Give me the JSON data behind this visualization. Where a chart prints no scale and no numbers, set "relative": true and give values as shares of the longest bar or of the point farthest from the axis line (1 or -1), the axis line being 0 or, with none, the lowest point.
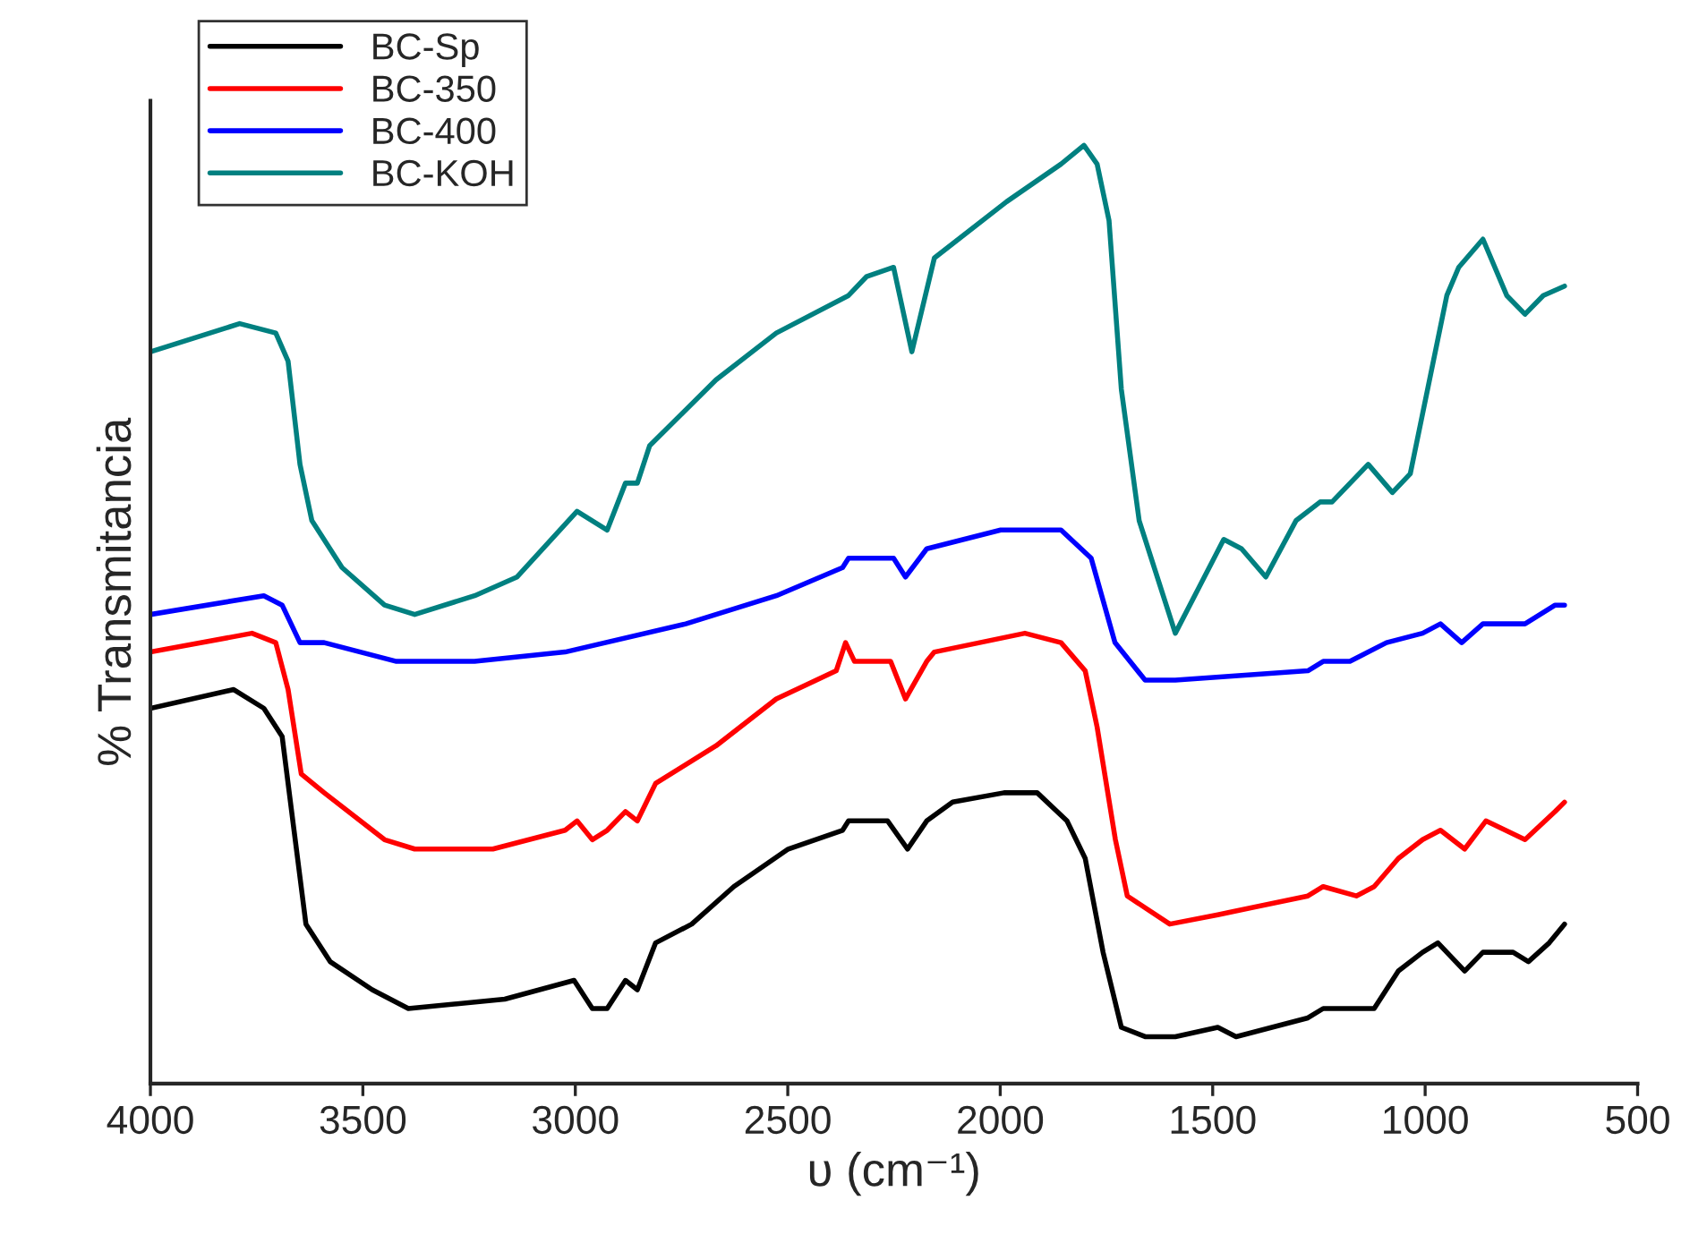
{
  "chart_data": {
    "type": "line",
    "xlabel": "υ (cm⁻¹)",
    "ylabel": "% Transmitancia",
    "relative": true,
    "xlim": [
      4000,
      500
    ],
    "xticks": [
      4000,
      3500,
      3000,
      2500,
      2000,
      1500,
      1000,
      500
    ],
    "tick_labels": "x",
    "legend": "top left",
    "grid": false,
    "line_style": "solid",
    "series": [
      {
        "name": "BC-Sp",
        "color": "#000000",
        "x": [
          4000,
          3804,
          3733,
          3690,
          3662,
          3634,
          3577,
          3478,
          3393,
          3166,
          3003,
          2960,
          2925,
          2882,
          2854,
          2811,
          2726,
          2627,
          2499,
          2371,
          2357,
          2265,
          2218,
          2173,
          2112,
          1991,
          1913,
          1843,
          1800,
          1758,
          1715,
          1659,
          1588,
          1488,
          1445,
          1276,
          1240,
          1162,
          1120,
          1063,
          1006,
          970,
          907,
          864,
          793,
          757,
          708,
          672
        ],
        "values": [
          0.4,
          0.42,
          0.4,
          0.37,
          0.27,
          0.17,
          0.13,
          0.1,
          0.08,
          0.09,
          0.11,
          0.08,
          0.08,
          0.11,
          0.1,
          0.15,
          0.17,
          0.21,
          0.25,
          0.27,
          0.28,
          0.28,
          0.25,
          0.28,
          0.3,
          0.31,
          0.31,
          0.28,
          0.24,
          0.14,
          0.06,
          0.05,
          0.05,
          0.06,
          0.05,
          0.07,
          0.08,
          0.08,
          0.08,
          0.12,
          0.14,
          0.15,
          0.12,
          0.14,
          0.14,
          0.13,
          0.15,
          0.17
        ]
      },
      {
        "name": "BC-350",
        "color": "#ff0000",
        "x": [
          4000,
          3761,
          3705,
          3676,
          3645,
          3591,
          3449,
          3378,
          3194,
          3024,
          2996,
          2960,
          2925,
          2882,
          2854,
          2811,
          2669,
          2527,
          2386,
          2364,
          2343,
          2258,
          2223,
          2173,
          2155,
          1942,
          1857,
          1800,
          1772,
          1729,
          1701,
          1601,
          1488,
          1276,
          1240,
          1162,
          1120,
          1063,
          1006,
          964,
          907,
          857,
          765,
          694,
          672
        ],
        "values": [
          0.46,
          0.48,
          0.47,
          0.42,
          0.33,
          0.31,
          0.26,
          0.25,
          0.25,
          0.27,
          0.28,
          0.26,
          0.27,
          0.29,
          0.28,
          0.32,
          0.36,
          0.41,
          0.44,
          0.47,
          0.45,
          0.45,
          0.41,
          0.45,
          0.46,
          0.48,
          0.47,
          0.44,
          0.38,
          0.26,
          0.2,
          0.17,
          0.18,
          0.2,
          0.21,
          0.2,
          0.21,
          0.24,
          0.26,
          0.27,
          0.25,
          0.28,
          0.26,
          0.29,
          0.3
        ]
      },
      {
        "name": "BC-400",
        "color": "#0000ff",
        "x": [
          4000,
          3733,
          3690,
          3648,
          3591,
          3421,
          3237,
          3024,
          2740,
          2527,
          2371,
          2357,
          2251,
          2223,
          2173,
          1999,
          1857,
          1786,
          1730,
          1659,
          1588,
          1276,
          1240,
          1177,
          1091,
          1006,
          964,
          914,
          864,
          765,
          694,
          672
        ],
        "values": [
          0.5,
          0.52,
          0.51,
          0.47,
          0.47,
          0.45,
          0.45,
          0.46,
          0.49,
          0.52,
          0.55,
          0.56,
          0.56,
          0.54,
          0.57,
          0.59,
          0.59,
          0.56,
          0.47,
          0.43,
          0.43,
          0.44,
          0.45,
          0.45,
          0.47,
          0.48,
          0.49,
          0.47,
          0.49,
          0.49,
          0.51,
          0.51
        ]
      },
      {
        "name": "BC-KOH",
        "color": "#008080",
        "x": [
          4000,
          3790,
          3705,
          3676,
          3648,
          3620,
          3549,
          3449,
          3378,
          3237,
          3137,
          2996,
          2925,
          2882,
          2854,
          2825,
          2669,
          2527,
          2357,
          2315,
          2251,
          2208,
          2155,
          1985,
          1857,
          1803,
          1772,
          1744,
          1715,
          1673,
          1588,
          1531,
          1474,
          1432,
          1375,
          1304,
          1247,
          1219,
          1134,
          1077,
          1035,
          949,
          921,
          864,
          808,
          765,
          722,
          672
        ],
        "values": [
          0.78,
          0.81,
          0.8,
          0.77,
          0.66,
          0.6,
          0.55,
          0.51,
          0.5,
          0.52,
          0.54,
          0.61,
          0.59,
          0.64,
          0.64,
          0.68,
          0.75,
          0.8,
          0.84,
          0.86,
          0.87,
          0.78,
          0.88,
          0.94,
          0.98,
          1.0,
          0.98,
          0.92,
          0.74,
          0.6,
          0.48,
          0.53,
          0.58,
          0.57,
          0.54,
          0.6,
          0.62,
          0.62,
          0.66,
          0.63,
          0.65,
          0.84,
          0.87,
          0.9,
          0.84,
          0.82,
          0.84,
          0.85
        ]
      }
    ]
  }
}
